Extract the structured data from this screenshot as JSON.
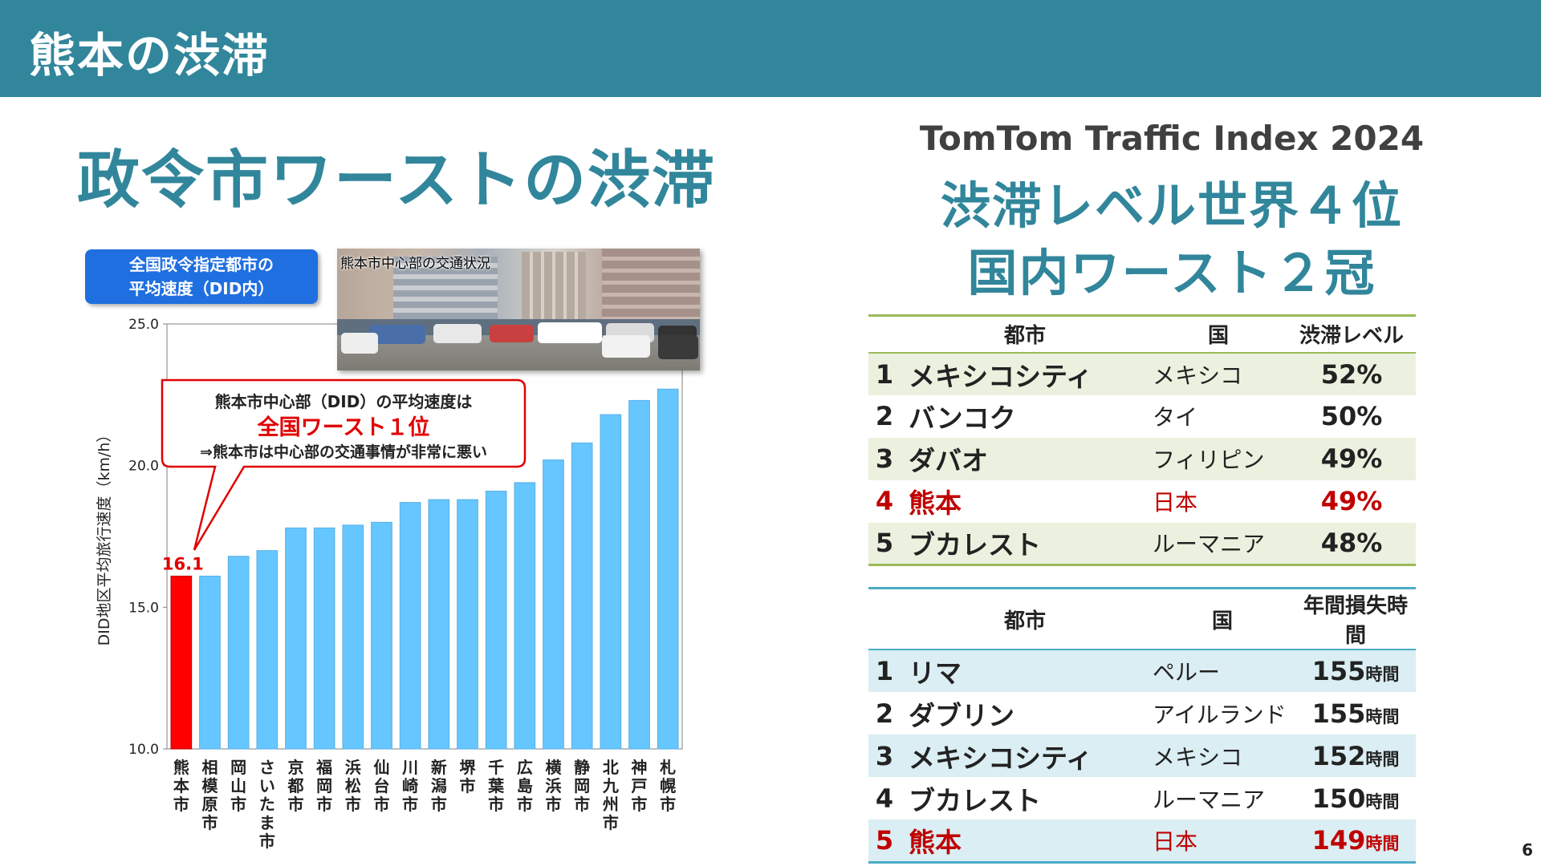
{
  "header": {
    "title": "熊本の渋滞"
  },
  "left": {
    "title": "政令市ワーストの渋滞",
    "chart_label_line1": "全国政令指定都市の",
    "chart_label_line2": "平均速度（DID内）",
    "photo_caption": "熊本市中心部の交通状況",
    "callout": {
      "line1": "熊本市中心部（DID）の平均速度は",
      "line2": "全国ワースト１位",
      "line3": "⇒熊本市は中心部の交通事情が非常に悪い"
    }
  },
  "chart_data": {
    "type": "bar",
    "title": "",
    "xlabel": "",
    "ylabel": "DID地区平均旅行速度（km/h）",
    "ylim": [
      10.0,
      25.0
    ],
    "yticks": [
      "10.0",
      "15.0",
      "20.0",
      "25.0"
    ],
    "categories": [
      "熊本市",
      "相模原市",
      "岡山市",
      "さいたま市",
      "京都市",
      "福岡市",
      "浜松市",
      "仙台市",
      "川崎市",
      "新潟市",
      "堺市",
      "千葉市",
      "広島市",
      "横浜市",
      "静岡市",
      "北九州市",
      "神戸市",
      "札幌市"
    ],
    "values": [
      16.1,
      16.1,
      16.8,
      17.0,
      17.8,
      17.8,
      17.9,
      18.0,
      18.7,
      18.8,
      18.8,
      19.1,
      19.4,
      20.2,
      20.8,
      21.8,
      22.3,
      22.7
    ],
    "highlight_index": 0,
    "highlight_label": "16.1",
    "bar_color": "#66c6ff",
    "highlight_color": "#ff0000"
  },
  "right": {
    "subtitle": "TomTom Traffic Index 2024",
    "headline1": "渋滞レベル世界４位",
    "headline2": "国内ワースト２冠",
    "table1": {
      "headers": [
        "都市",
        "国",
        "渋滞レベル"
      ],
      "rows": [
        {
          "rank": "1",
          "city": "メキシコシティ",
          "country": "メキシコ",
          "value": "52%"
        },
        {
          "rank": "2",
          "city": "バンコク",
          "country": "タイ",
          "value": "50%"
        },
        {
          "rank": "3",
          "city": "ダバオ",
          "country": "フィリピン",
          "value": "49%"
        },
        {
          "rank": "4",
          "city": "熊本",
          "country": "日本",
          "value": "49%"
        },
        {
          "rank": "5",
          "city": "ブカレスト",
          "country": "ルーマニア",
          "value": "48%"
        }
      ]
    },
    "table2": {
      "headers": [
        "都市",
        "国",
        "年間損失時間"
      ],
      "unit": "時間",
      "rows": [
        {
          "rank": "1",
          "city": "リマ",
          "country": "ペルー",
          "value": "155"
        },
        {
          "rank": "2",
          "city": "ダブリン",
          "country": "アイルランド",
          "value": "155"
        },
        {
          "rank": "3",
          "city": "メキシコシティ",
          "country": "メキシコ",
          "value": "152"
        },
        {
          "rank": "4",
          "city": "ブカレスト",
          "country": "ルーマニア",
          "value": "150"
        },
        {
          "rank": "5",
          "city": "熊本",
          "country": "日本",
          "value": "149"
        }
      ]
    }
  },
  "page_number": "6"
}
